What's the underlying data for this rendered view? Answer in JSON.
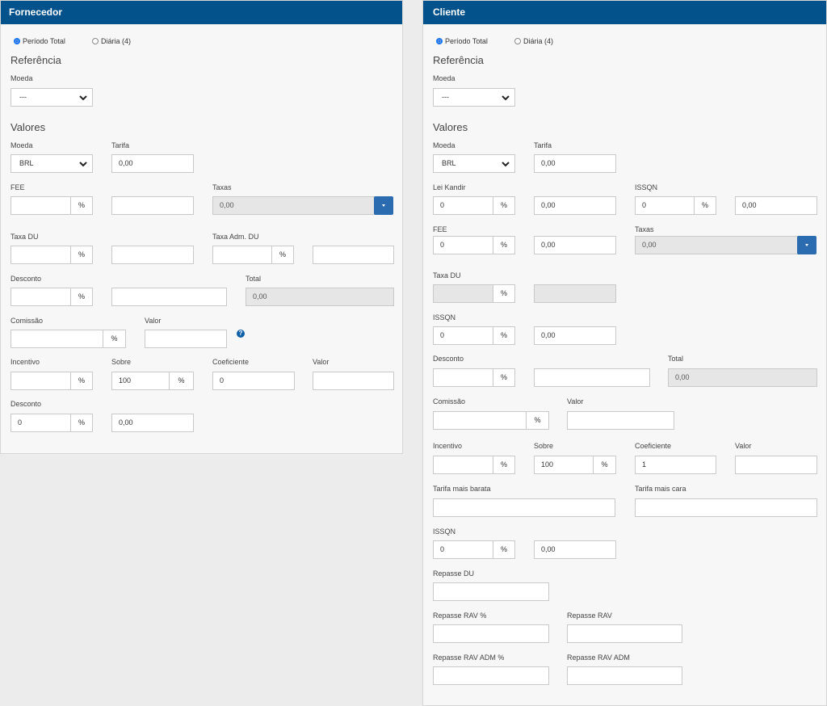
{
  "fornecedor": {
    "title": "Fornecedor",
    "radio_periodo": "Período Total",
    "radio_diaria": "Diária (4)",
    "referencia": "Referência",
    "moeda_ref_label": "Moeda",
    "moeda_ref_value": "---",
    "valores": "Valores",
    "moeda_label": "Moeda",
    "moeda_value": "BRL",
    "tarifa_label": "Tarifa",
    "tarifa_value": "0,00",
    "fee_label": "FEE",
    "fee_pct": "",
    "fee_value": "",
    "taxas_label": "Taxas",
    "taxas_value": "0,00",
    "taxa_du_label": "Taxa DU",
    "taxa_du_pct": "",
    "taxa_du_value": "",
    "taxa_adm_du_label": "Taxa Adm. DU",
    "taxa_adm_du_pct": "",
    "taxa_adm_du_value": "",
    "desconto_label": "Desconto",
    "desconto_pct": "",
    "desconto_value": "",
    "total_label": "Total",
    "total_value": "0,00",
    "comissao_label": "Comissão",
    "comissao_pct": "",
    "valor_label": "Valor",
    "valor_value": "",
    "help_symbol": "?",
    "incentivo_label": "Incentivo",
    "incentivo_pct": "",
    "sobre_label": "Sobre",
    "sobre_value": "100",
    "coeficiente_label": "Coeficiente",
    "coeficiente_value": "0",
    "valor2_label": "Valor",
    "valor2_value": "",
    "desconto2_label": "Desconto",
    "desconto2_pct": "0",
    "desconto2_value": "0,00"
  },
  "cliente": {
    "title": "Cliente",
    "radio_periodo": "Período Total",
    "radio_diaria": "Diária (4)",
    "referencia": "Referência",
    "moeda_ref_label": "Moeda",
    "moeda_ref_value": "---",
    "valores": "Valores",
    "moeda_label": "Moeda",
    "moeda_value": "BRL",
    "tarifa_label": "Tarifa",
    "tarifa_value": "0,00",
    "lei_kandir_label": "Lei Kandir",
    "lei_kandir_pct": "0",
    "lei_kandir_value": "0,00",
    "issqn_label": "ISSQN",
    "issqn_pct": "0",
    "issqn_value": "0,00",
    "fee_label": "FEE",
    "fee_pct": "0",
    "fee_value": "0,00",
    "taxas_label": "Taxas",
    "taxas_value": "0,00",
    "taxa_du_label": "Taxa DU",
    "taxa_du_pct": "",
    "taxa_du_value": "",
    "issqn2_label": "ISSQN",
    "issqn2_pct": "0",
    "issqn2_value": "0,00",
    "desconto_label": "Desconto",
    "desconto_pct": "",
    "desconto_value": "",
    "total_label": "Total",
    "total_value": "0,00",
    "comissao_label": "Comissão",
    "comissao_pct": "",
    "valor_label": "Valor",
    "valor_value": "",
    "incentivo_label": "Incentivo",
    "incentivo_pct": "",
    "sobre_label": "Sobre",
    "sobre_value": "100",
    "coeficiente_label": "Coeficiente",
    "coeficiente_value": "1",
    "valor2_label": "Valor",
    "valor2_value": "",
    "tarifa_barata_label": "Tarifa mais barata",
    "tarifa_barata_value": "",
    "tarifa_cara_label": "Tarifa mais cara",
    "tarifa_cara_value": "",
    "issqn3_label": "ISSQN",
    "issqn3_pct": "0",
    "issqn3_value": "0,00",
    "repasse_du_label": "Repasse DU",
    "repasse_du_value": "",
    "repasse_rav_pct_label": "Repasse RAV %",
    "repasse_rav_pct_value": "",
    "repasse_rav_label": "Repasse RAV",
    "repasse_rav_value": "",
    "repasse_rav_adm_pct_label": "Repasse RAV ADM %",
    "repasse_rav_adm_pct_value": "",
    "repasse_rav_adm_label": "Repasse RAV ADM",
    "repasse_rav_adm_value": ""
  },
  "common": {
    "pct_symbol": "%",
    "accent": "#03528c",
    "button_color": "#2b6cb0"
  }
}
